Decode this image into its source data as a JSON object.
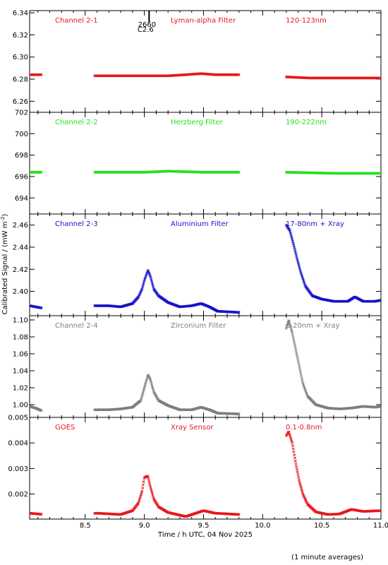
{
  "xlabel": "Time / h UTC, 04 Nov 2025",
  "ylabel": "Calibrated Signal / (mW m",
  "ylabel_sup": "-2",
  "ylabel_close": ")",
  "footnote": "(1 minute averages)",
  "marker": {
    "top": "2660",
    "bottom": "C2.6",
    "x": 9.04
  },
  "colors": {
    "red": "#e8181d",
    "green": "#22e21b",
    "blue": "#1515c8",
    "gray": "#7e7e7e"
  },
  "chart_data": [
    {
      "type": "scatter",
      "channel": "Channel 2-1",
      "filter": "Lyman-alpha Filter",
      "band": "120-123nm",
      "color": "#e8181d",
      "ylim": [
        6.25,
        6.342
      ],
      "yticks": [
        6.26,
        6.28,
        6.3,
        6.32,
        6.34
      ],
      "ytick_labels": [
        "6.26",
        "6.28",
        "6.30",
        "6.32",
        "6.34"
      ],
      "xlim": [
        8.03,
        11.0
      ],
      "xticks": [
        8.5,
        9.0,
        9.5,
        10.0,
        10.5,
        11.0
      ],
      "xtick_labels": [
        "8.5",
        "9.0",
        "9.5",
        "10.0",
        "10.5",
        "11.0"
      ],
      "points": [
        [
          8.03,
          6.284
        ],
        [
          8.1,
          6.284
        ],
        [
          8.13,
          6.284
        ],
        [
          8.58,
          6.283
        ],
        [
          8.8,
          6.283
        ],
        [
          9.0,
          6.283
        ],
        [
          9.2,
          6.283
        ],
        [
          9.35,
          6.284
        ],
        [
          9.48,
          6.285
        ],
        [
          9.6,
          6.284
        ],
        [
          9.8,
          6.284
        ],
        [
          10.2,
          6.282
        ],
        [
          10.4,
          6.281
        ],
        [
          10.6,
          6.281
        ],
        [
          10.8,
          6.281
        ],
        [
          11.0,
          6.281
        ]
      ]
    },
    {
      "type": "scatter",
      "channel": "Channel 2-2",
      "filter": "Herzberg Filter",
      "band": "190-222nm",
      "color": "#22e21b",
      "ylim": [
        692.5,
        702.0
      ],
      "yticks": [
        694,
        696,
        698,
        700,
        702
      ],
      "ytick_labels": [
        "694",
        "696",
        "698",
        "700",
        "702"
      ],
      "xlim": [
        8.03,
        11.0
      ],
      "xticks": [
        8.5,
        9.0,
        9.5,
        10.0,
        10.5,
        11.0
      ],
      "xtick_labels": [
        "8.5",
        "9.0",
        "9.5",
        "10.0",
        "10.5",
        "11.0"
      ],
      "points": [
        [
          8.03,
          696.4
        ],
        [
          8.13,
          696.4
        ],
        [
          8.58,
          696.4
        ],
        [
          9.0,
          696.4
        ],
        [
          9.2,
          696.5
        ],
        [
          9.5,
          696.4
        ],
        [
          9.8,
          696.4
        ],
        [
          10.2,
          696.4
        ],
        [
          10.6,
          696.3
        ],
        [
          11.0,
          696.3
        ]
      ]
    },
    {
      "type": "scatter",
      "channel": "Channel 2-3",
      "filter": "Aluminium Filter",
      "band": "17-80nm + Xray",
      "color": "#1515c8",
      "ylim": [
        2.378,
        2.47
      ],
      "yticks": [
        2.4,
        2.42,
        2.44,
        2.46
      ],
      "ytick_labels": [
        "2.40",
        "2.42",
        "2.44",
        "2.46"
      ],
      "xlim": [
        8.03,
        11.0
      ],
      "xticks": [
        8.5,
        9.0,
        9.5,
        10.0,
        10.5,
        11.0
      ],
      "xtick_labels": [
        "8.5",
        "9.0",
        "9.5",
        "10.0",
        "10.5",
        "11.0"
      ],
      "points": [
        [
          8.03,
          2.387
        ],
        [
          8.08,
          2.386
        ],
        [
          8.13,
          2.385
        ],
        [
          8.58,
          2.387
        ],
        [
          8.7,
          2.387
        ],
        [
          8.8,
          2.386
        ],
        [
          8.9,
          2.389
        ],
        [
          8.95,
          2.395
        ],
        [
          8.98,
          2.402
        ],
        [
          9.0,
          2.41
        ],
        [
          9.03,
          2.419
        ],
        [
          9.05,
          2.414
        ],
        [
          9.08,
          2.402
        ],
        [
          9.12,
          2.396
        ],
        [
          9.2,
          2.39
        ],
        [
          9.3,
          2.386
        ],
        [
          9.4,
          2.387
        ],
        [
          9.48,
          2.389
        ],
        [
          9.55,
          2.386
        ],
        [
          9.62,
          2.382
        ],
        [
          9.8,
          2.381
        ],
        [
          10.2,
          2.46
        ],
        [
          10.23,
          2.455
        ],
        [
          10.26,
          2.443
        ],
        [
          10.29,
          2.43
        ],
        [
          10.32,
          2.418
        ],
        [
          10.36,
          2.405
        ],
        [
          10.42,
          2.396
        ],
        [
          10.5,
          2.393
        ],
        [
          10.6,
          2.391
        ],
        [
          10.72,
          2.391
        ],
        [
          10.78,
          2.395
        ],
        [
          10.85,
          2.391
        ],
        [
          10.95,
          2.391
        ],
        [
          11.0,
          2.392
        ]
      ]
    },
    {
      "type": "scatter",
      "channel": "Channel 2-4",
      "filter": "Zirconium Filter",
      "band": "6-20nm + Xray",
      "color": "#7e7e7e",
      "ylim": [
        0.985,
        1.105
      ],
      "yticks": [
        1.0,
        1.02,
        1.04,
        1.06,
        1.08,
        1.1
      ],
      "ytick_labels": [
        "1.00",
        "1.02",
        "1.04",
        "1.06",
        "1.08",
        "1.10"
      ],
      "xlim": [
        8.03,
        11.0
      ],
      "xticks": [
        8.5,
        9.0,
        9.5,
        10.0,
        10.5,
        11.0
      ],
      "xtick_labels": [
        "8.5",
        "9.0",
        "9.5",
        "10.0",
        "10.5",
        "11.0"
      ],
      "points": [
        [
          8.03,
          0.998
        ],
        [
          8.08,
          0.996
        ],
        [
          8.13,
          0.993
        ],
        [
          8.58,
          0.994
        ],
        [
          8.7,
          0.994
        ],
        [
          8.8,
          0.995
        ],
        [
          8.9,
          0.997
        ],
        [
          8.97,
          1.005
        ],
        [
          9.0,
          1.02
        ],
        [
          9.03,
          1.035
        ],
        [
          9.05,
          1.03
        ],
        [
          9.08,
          1.015
        ],
        [
          9.12,
          1.005
        ],
        [
          9.2,
          0.999
        ],
        [
          9.3,
          0.994
        ],
        [
          9.4,
          0.994
        ],
        [
          9.48,
          0.997
        ],
        [
          9.55,
          0.994
        ],
        [
          9.62,
          0.99
        ],
        [
          9.8,
          0.989
        ],
        [
          10.18,
          1.045
        ],
        [
          10.2,
          1.09
        ],
        [
          10.22,
          1.1
        ],
        [
          10.25,
          1.085
        ],
        [
          10.28,
          1.065
        ],
        [
          10.31,
          1.045
        ],
        [
          10.34,
          1.025
        ],
        [
          10.38,
          1.01
        ],
        [
          10.45,
          1.0
        ],
        [
          10.55,
          0.996
        ],
        [
          10.65,
          0.995
        ],
        [
          10.75,
          0.996
        ],
        [
          10.85,
          0.998
        ],
        [
          10.95,
          0.997
        ],
        [
          11.0,
          0.998
        ]
      ]
    },
    {
      "type": "scatter",
      "channel": "GOES",
      "filter": "Xray Sensor",
      "band": "0.1-0.8nm",
      "color": "#e8181d",
      "ylim": [
        0.00102,
        0.005
      ],
      "yticks": [
        0.002,
        0.003,
        0.004,
        0.005
      ],
      "ytick_labels": [
        "0.002",
        "0.003",
        "0.004",
        "0.005"
      ],
      "xlim": [
        8.03,
        11.0
      ],
      "xticks": [
        8.5,
        9.0,
        9.5,
        10.0,
        10.5,
        11.0
      ],
      "xtick_labels": [
        "8.5",
        "9.0",
        "9.5",
        "10.0",
        "10.5",
        "11.0"
      ],
      "points": [
        [
          8.03,
          0.00125
        ],
        [
          8.2,
          0.00118
        ],
        [
          8.4,
          0.0012
        ],
        [
          8.6,
          0.00125
        ],
        [
          8.8,
          0.0012
        ],
        [
          8.9,
          0.00135
        ],
        [
          8.95,
          0.00165
        ],
        [
          8.98,
          0.0021
        ],
        [
          9.0,
          0.00265
        ],
        [
          9.03,
          0.0027
        ],
        [
          9.05,
          0.0023
        ],
        [
          9.08,
          0.0018
        ],
        [
          9.12,
          0.0015
        ],
        [
          9.2,
          0.00128
        ],
        [
          9.35,
          0.00112
        ],
        [
          9.5,
          0.00135
        ],
        [
          9.6,
          0.00125
        ],
        [
          9.8,
          0.0012
        ],
        [
          9.95,
          0.00115
        ],
        [
          10.05,
          0.00125
        ],
        [
          10.1,
          0.0018
        ],
        [
          10.13,
          0.0026
        ],
        [
          10.16,
          0.0035
        ],
        [
          10.19,
          0.0042
        ],
        [
          10.22,
          0.00445
        ],
        [
          10.25,
          0.004
        ],
        [
          10.28,
          0.0032
        ],
        [
          10.31,
          0.0025
        ],
        [
          10.34,
          0.002
        ],
        [
          10.38,
          0.0016
        ],
        [
          10.45,
          0.0013
        ],
        [
          10.55,
          0.0012
        ],
        [
          10.65,
          0.00122
        ],
        [
          10.75,
          0.0014
        ],
        [
          10.85,
          0.00132
        ],
        [
          11.0,
          0.00135
        ]
      ]
    }
  ]
}
